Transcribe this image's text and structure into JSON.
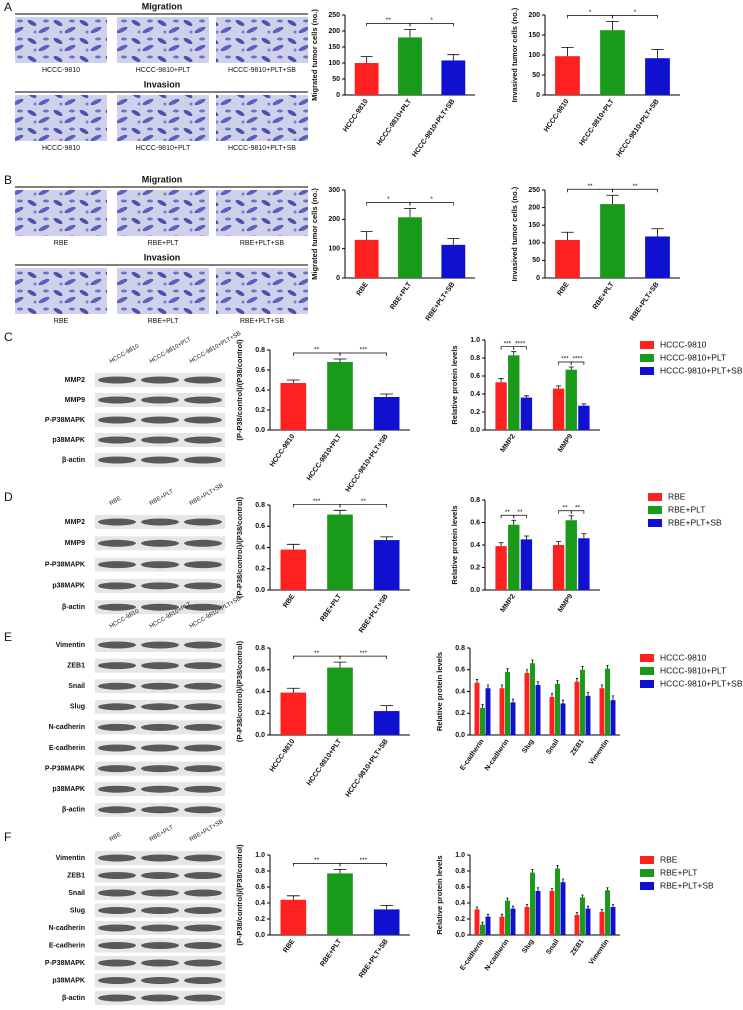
{
  "image_panels": [
    {
      "letter": "A",
      "sections": [
        {
          "title": "Migration",
          "labels": [
            "HCCC-9810",
            "HCCC-9810+PLT",
            "HCCC-9810+PLT+SB"
          ]
        },
        {
          "title": "Invasion",
          "labels": [
            "HCCC-9810",
            "HCCC-9810+PLT",
            "HCCC-9810+PLT+SB"
          ]
        }
      ]
    },
    {
      "letter": "B",
      "sections": [
        {
          "title": "Migration",
          "labels": [
            "RBE",
            "RBE+PLT",
            "RBE+PLT+SB"
          ]
        },
        {
          "title": "Invasion",
          "labels": [
            "RBE",
            "RBE+PLT",
            "RBE+PLT+SB"
          ]
        }
      ]
    }
  ],
  "blot_panels": [
    {
      "letter": "C",
      "lanes": [
        "HCCC-9810",
        "HCCC-9810+PLT",
        "HCCC-9810+PLT+SB"
      ],
      "rows": [
        "MMP2",
        "MMP9",
        "P-P38MAPK",
        "p38MAPK",
        "β-actin"
      ]
    },
    {
      "letter": "D",
      "lanes": [
        "RBE",
        "RBE+PLT",
        "RBE+PLT+SB"
      ],
      "rows": [
        "MMP2",
        "MMP9",
        "P-P38MAPK",
        "p38MAPK",
        "β-actin"
      ]
    },
    {
      "letter": "E",
      "lanes": [
        "HCCC-9810",
        "HCCC-9810+PLT",
        "HCCC-9810+PLT+SB"
      ],
      "rows": [
        "Vimentin",
        "ZEB1",
        "Snail",
        "Slug",
        "N-cadherin",
        "E-cadherin",
        "P-P38MAPK",
        "p38MAPK",
        "β-actin"
      ]
    },
    {
      "letter": "F",
      "lanes": [
        "RBE",
        "RBE+PLT",
        "RBE+PLT+SB"
      ],
      "rows": [
        "Vimentin",
        "ZEB1",
        "Snail",
        "Slug",
        "N-cadherin",
        "E-cadherin",
        "P-P38MAPK",
        "p38MAPK",
        "β-actin"
      ]
    }
  ],
  "chart_data": [
    {
      "type": "bar",
      "ylabel": "Migrated tumor cells (no.)",
      "categories": [
        "HCCC-9810",
        "HCCC-9810+PLT",
        "HCCC-9810+PLT+SB"
      ],
      "colors": [
        "#ff2020",
        "#1a9a1a",
        "#1010d0"
      ],
      "values": [
        100,
        180,
        108
      ],
      "errors": [
        20,
        25,
        18
      ],
      "significance_labels": [
        "**",
        "*"
      ],
      "ylim": [
        0,
        250
      ],
      "yticks": [
        0,
        50,
        100,
        150,
        200,
        250
      ]
    },
    {
      "type": "bar",
      "ylabel": "Invasived tumor cells (no.)",
      "categories": [
        "HCCC-9810",
        "HCCC-9810+PLT",
        "HCCC-9810+PLT+SB"
      ],
      "colors": [
        "#ff2020",
        "#1a9a1a",
        "#1010d0"
      ],
      "values": [
        97,
        162,
        92
      ],
      "errors": [
        22,
        22,
        22
      ],
      "significance_labels": [
        "*",
        "*"
      ],
      "ylim": [
        0,
        200
      ],
      "yticks": [
        0,
        50,
        100,
        150,
        200
      ]
    },
    {
      "type": "bar",
      "ylabel": "Migrated tumor cells (no.)",
      "categories": [
        "RBE",
        "RBE+PLT",
        "RBE+PLT+SB"
      ],
      "colors": [
        "#ff2020",
        "#1a9a1a",
        "#1010d0"
      ],
      "values": [
        130,
        207,
        113
      ],
      "errors": [
        28,
        30,
        22
      ],
      "significance_labels": [
        "*",
        "*"
      ],
      "ylim": [
        0,
        300
      ],
      "yticks": [
        0,
        100,
        200,
        300
      ]
    },
    {
      "type": "bar",
      "ylabel": "Invasived tumor cells (no.)",
      "categories": [
        "RBE",
        "RBE+PLT",
        "RBE+PLT+SB"
      ],
      "colors": [
        "#ff2020",
        "#1a9a1a",
        "#1010d0"
      ],
      "values": [
        108,
        210,
        118
      ],
      "errors": [
        22,
        25,
        22
      ],
      "significance_labels": [
        "**",
        "**"
      ],
      "ylim": [
        0,
        250
      ],
      "yticks": [
        0,
        50,
        100,
        150,
        200,
        250
      ]
    },
    {
      "type": "bar",
      "ylabel": "(P-P38/control)/(P38/control)",
      "categories": [
        "HCCC-9810",
        "HCCC-9810+PLT",
        "HCCC-9810+PLT+SB"
      ],
      "colors": [
        "#ff2020",
        "#1a9a1a",
        "#1010d0"
      ],
      "values": [
        0.47,
        0.68,
        0.33
      ],
      "errors": [
        0.03,
        0.03,
        0.03
      ],
      "significance_labels": [
        "**",
        "***"
      ],
      "ylim": [
        0,
        0.8
      ],
      "yticks": [
        {
          "value": 0,
          "label": "0.0"
        },
        0.2,
        0.4,
        0.6,
        0.8
      ]
    },
    {
      "type": "grouped_bar",
      "ylabel": "Relative protein levels",
      "categories": [
        "MMP2",
        "MMP9"
      ],
      "series": [
        {
          "name": "HCCC-9810",
          "color": "#ff2020",
          "values": [
            0.53,
            0.46
          ],
          "errors": [
            0.04,
            0.03
          ]
        },
        {
          "name": "HCCC-9810+PLT",
          "color": "#1a9a1a",
          "values": [
            0.83,
            0.67
          ],
          "errors": [
            0.04,
            0.03
          ]
        },
        {
          "name": "HCCC-9810+PLT+SB",
          "color": "#1010d0",
          "values": [
            0.36,
            0.27
          ],
          "errors": [
            0.02,
            0.02
          ]
        }
      ],
      "significance_labels": [
        [
          "***",
          "****"
        ],
        [
          "***",
          "****"
        ]
      ],
      "ylim": [
        0,
        1.0
      ],
      "yticks": [
        {
          "value": 0,
          "label": "0.0"
        },
        0.2,
        0.4,
        0.6,
        0.8,
        {
          "value": 1,
          "label": "1.0"
        }
      ]
    },
    {
      "type": "bar",
      "ylabel": "(P-P38/control)/(P38/control)",
      "categories": [
        "RBE",
        "RBE+PLT",
        "RBE+PLT+SB"
      ],
      "colors": [
        "#ff2020",
        "#1a9a1a",
        "#1010d0"
      ],
      "values": [
        0.38,
        0.71,
        0.47
      ],
      "errors": [
        0.05,
        0.04,
        0.03
      ],
      "significance_labels": [
        "***",
        "**"
      ],
      "ylim": [
        0,
        0.8
      ],
      "yticks": [
        {
          "value": 0,
          "label": "0.0"
        },
        0.2,
        0.4,
        0.6,
        0.8
      ]
    },
    {
      "type": "grouped_bar",
      "ylabel": "Relative protein levels",
      "categories": [
        "MMP2",
        "MMP9"
      ],
      "series": [
        {
          "name": "RBE",
          "color": "#ff2020",
          "values": [
            0.39,
            0.4
          ],
          "errors": [
            0.03,
            0.03
          ]
        },
        {
          "name": "RBE+PLT",
          "color": "#1a9a1a",
          "values": [
            0.58,
            0.62
          ],
          "errors": [
            0.04,
            0.04
          ]
        },
        {
          "name": "RBE+PLT+SB",
          "color": "#1010d0",
          "values": [
            0.45,
            0.46
          ],
          "errors": [
            0.03,
            0.04
          ]
        }
      ],
      "significance_labels": [
        [
          "**",
          "**"
        ],
        [
          "**",
          "**"
        ]
      ],
      "ylim": [
        0,
        0.8
      ],
      "yticks": [
        {
          "value": 0,
          "label": "0.0"
        },
        0.2,
        0.4,
        0.6,
        0.8
      ]
    },
    {
      "type": "bar",
      "ylabel": "(P-P38/control)/(P38/control)",
      "categories": [
        "HCCC-9810",
        "HCCC-9810+PLT",
        "HCCC-9810+PLT+SB"
      ],
      "colors": [
        "#ff2020",
        "#1a9a1a",
        "#1010d0"
      ],
      "values": [
        0.39,
        0.62,
        0.22
      ],
      "errors": [
        0.04,
        0.05,
        0.05
      ],
      "significance_labels": [
        "**",
        "***"
      ],
      "ylim": [
        0,
        0.8
      ],
      "yticks": [
        {
          "value": 0,
          "label": "0.0"
        },
        0.2,
        0.4,
        0.6,
        0.8
      ]
    },
    {
      "type": "grouped_bar",
      "ylabel": "Relative protein levels",
      "categories": [
        "E-cadherin",
        "N-cadherin",
        "Slug",
        "Snail",
        "ZEB1",
        "Vimentin"
      ],
      "series": [
        {
          "name": "HCCC-9810",
          "color": "#ff2020",
          "values": [
            0.48,
            0.43,
            0.57,
            0.35,
            0.49,
            0.43
          ],
          "errors": [
            0.03,
            0.03,
            0.03,
            0.03,
            0.03,
            0.03
          ]
        },
        {
          "name": "HCCC-9810+PLT",
          "color": "#1a9a1a",
          "values": [
            0.25,
            0.58,
            0.66,
            0.47,
            0.6,
            0.61
          ],
          "errors": [
            0.03,
            0.03,
            0.03,
            0.03,
            0.03,
            0.03
          ]
        },
        {
          "name": "HCCC-9810+PLT+SB",
          "color": "#1010d0",
          "values": [
            0.43,
            0.3,
            0.46,
            0.29,
            0.36,
            0.32
          ],
          "errors": [
            0.03,
            0.03,
            0.03,
            0.03,
            0.03,
            0.04
          ]
        }
      ],
      "ylim": [
        0,
        0.8
      ],
      "yticks": [
        {
          "value": 0,
          "label": "0.0"
        },
        0.2,
        0.4,
        0.6,
        0.8
      ]
    },
    {
      "type": "bar",
      "ylabel": "(P-P38/control)/(P38/control)",
      "categories": [
        "RBE",
        "RBE+PLT",
        "RBE+PLT+SB"
      ],
      "colors": [
        "#ff2020",
        "#1a9a1a",
        "#1010d0"
      ],
      "values": [
        0.44,
        0.77,
        0.32
      ],
      "errors": [
        0.05,
        0.05,
        0.05
      ],
      "significance_labels": [
        "**",
        "***"
      ],
      "ylim": [
        0,
        1.0
      ],
      "yticks": [
        {
          "value": 0,
          "label": "0.0"
        },
        0.2,
        0.4,
        0.6,
        0.8,
        {
          "value": 1,
          "label": "1.0"
        }
      ]
    },
    {
      "type": "grouped_bar",
      "ylabel": "Relative protein levels",
      "categories": [
        "E-cadherin",
        "N-cadherin",
        "Slug",
        "Snail",
        "ZEB1",
        "Vimentin"
      ],
      "series": [
        {
          "name": "RBE",
          "color": "#ff2020",
          "values": [
            0.32,
            0.23,
            0.35,
            0.55,
            0.25,
            0.29
          ],
          "errors": [
            0.03,
            0.03,
            0.03,
            0.03,
            0.03,
            0.03
          ]
        },
        {
          "name": "RBE+PLT",
          "color": "#1a9a1a",
          "values": [
            0.13,
            0.43,
            0.78,
            0.83,
            0.47,
            0.56
          ],
          "errors": [
            0.03,
            0.03,
            0.04,
            0.04,
            0.03,
            0.03
          ]
        },
        {
          "name": "RBE+PLT+SB",
          "color": "#1010d0",
          "values": [
            0.23,
            0.33,
            0.55,
            0.66,
            0.33,
            0.35
          ],
          "errors": [
            0.03,
            0.03,
            0.04,
            0.04,
            0.03,
            0.03
          ]
        }
      ],
      "ylim": [
        0,
        1.0
      ],
      "yticks": [
        {
          "value": 0,
          "label": "0.0"
        },
        0.2,
        0.4,
        0.6,
        0.8,
        {
          "value": 1,
          "label": "1.0"
        }
      ]
    }
  ]
}
